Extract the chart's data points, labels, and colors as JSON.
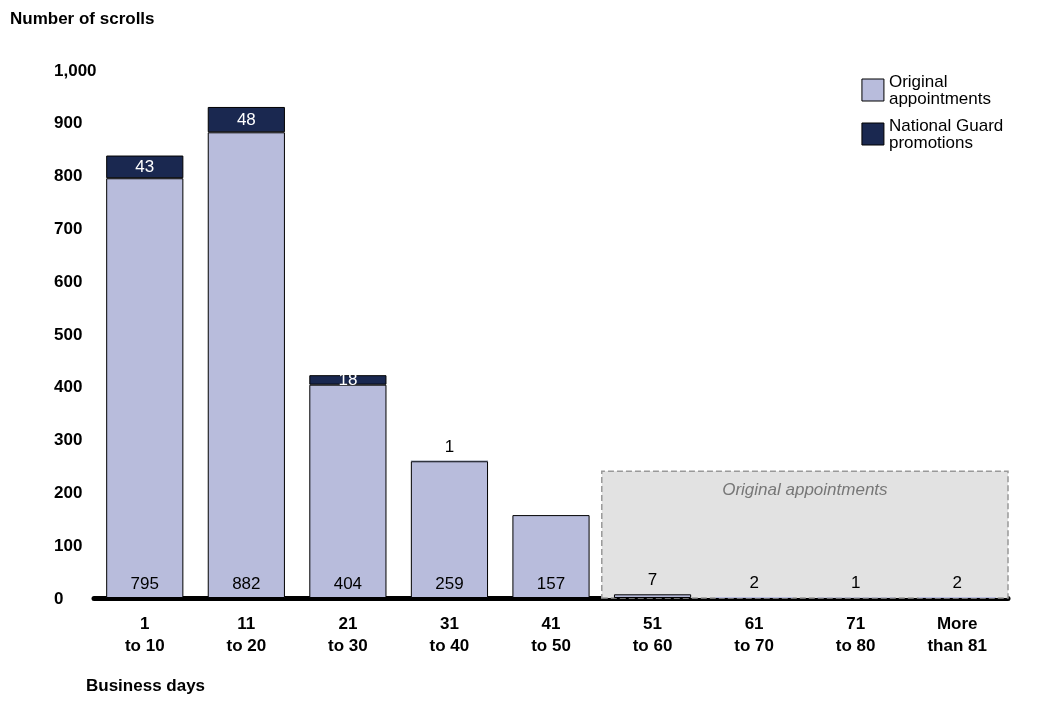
{
  "chart_data": {
    "type": "bar",
    "stacked": true,
    "ylabel": "Number of scrolls",
    "xlabel": "Business days",
    "categories": [
      "1\nto 10",
      "11\nto 20",
      "21\nto 30",
      "31\nto 40",
      "41\nto 50",
      "51\nto 60",
      "61\nto 70",
      "71\nto 80",
      "More\nthan 81"
    ],
    "series": [
      {
        "name": "Original appointments",
        "color": "#b8bcdc",
        "values": [
          795,
          882,
          404,
          259,
          157,
          7,
          2,
          1,
          2
        ]
      },
      {
        "name": "National Guard promotions",
        "color": "#1a2850",
        "values": [
          43,
          48,
          18,
          1,
          null,
          null,
          null,
          null,
          null
        ]
      }
    ],
    "ylim": [
      0,
      1000
    ],
    "yticks": [
      0,
      100,
      200,
      300,
      400,
      500,
      600,
      700,
      800,
      900,
      {
        "value": 1000,
        "label": "1,000"
      }
    ],
    "bands": [
      {
        "axis": "x",
        "from": "51\nto 60",
        "to": "More\nthan 81",
        "label": "Original appointments",
        "color": "#e2e2e2"
      }
    ],
    "data_labels": true,
    "grid": false,
    "legend": "top right"
  }
}
